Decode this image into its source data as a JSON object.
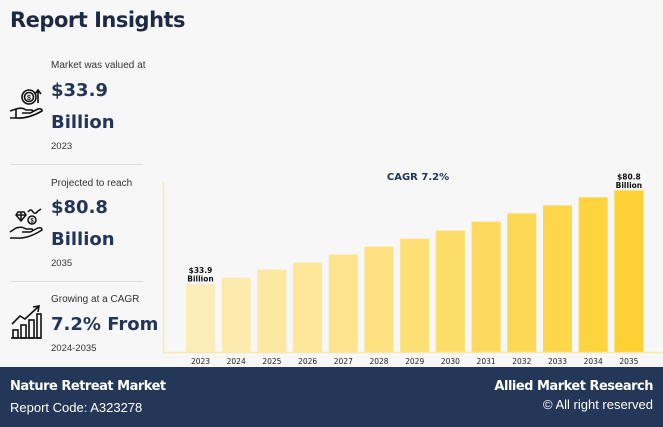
{
  "header": {
    "title": "Report Insights"
  },
  "stats": [
    {
      "icon": "money-hand-icon",
      "label": "Market was valued at",
      "value": "$33.9",
      "unit": "Billion",
      "year": "2023"
    },
    {
      "icon": "diamond-hand-icon",
      "label": "Projected to reach",
      "value": "$80.8",
      "unit": "Billion",
      "year": "2035"
    },
    {
      "icon": "growth-chart-icon",
      "label": "Growing at a CAGR",
      "value": "7.2% From",
      "unit": "",
      "year": "2024-2035"
    }
  ],
  "footer": {
    "market_name": "Nature Retreat Market",
    "report_code": "Report Code: A323278",
    "publisher": "Allied Market Research",
    "rights": "© All right reserved"
  },
  "colors": {
    "bar_start": "#fdedb8",
    "bar_end": "#fdd133",
    "axis": "#fbe7a8",
    "footer_bg": "#253758",
    "title": "#1e2a44"
  },
  "chart_data": {
    "type": "bar",
    "title": "CAGR 7.2%",
    "xlabel": "",
    "ylabel": "",
    "categories": [
      "2023",
      "2024",
      "2025",
      "2026",
      "2027",
      "2028",
      "2029",
      "2030",
      "2031",
      "2032",
      "2033",
      "2034",
      "2035"
    ],
    "values": [
      33.9,
      37.2,
      41.2,
      44.7,
      48.7,
      52.7,
      56.7,
      60.7,
      65.2,
      69.3,
      73.3,
      77.3,
      80.8
    ],
    "annotations": [
      {
        "category": "2023",
        "text": [
          "$33.9",
          "Billion"
        ]
      },
      {
        "category": "2035",
        "text": [
          "$80.8",
          "Billion"
        ]
      }
    ],
    "ylim": [
      0,
      90
    ],
    "grid": false,
    "legend": "none"
  }
}
